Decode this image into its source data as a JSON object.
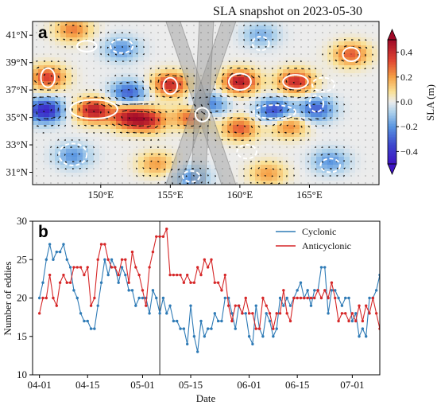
{
  "chart_data": [
    {
      "type": "heatmap",
      "panel_label": "a",
      "title": "SLA snapshot on 2023-05-30",
      "xlabel": "",
      "ylabel": "",
      "x_ticks": [
        "150°E",
        "155°E",
        "160°E",
        "165°E"
      ],
      "x_tick_values": [
        150,
        155,
        160,
        165
      ],
      "y_ticks": [
        "31°N",
        "33°N",
        "35°N",
        "37°N",
        "39°N",
        "41°N"
      ],
      "y_tick_values": [
        31,
        33,
        35,
        37,
        39,
        41
      ],
      "xlim": [
        145.1,
        170
      ],
      "ylim": [
        30.1,
        42
      ],
      "colorbar": {
        "label": "SLA (m)",
        "ticks": [
          "0.4",
          "0.2",
          "0.0",
          "−0.2",
          "−0.4"
        ],
        "tick_values": [
          0.4,
          0.2,
          0.0,
          -0.2,
          -0.4
        ],
        "range": [
          -0.5,
          0.5
        ],
        "extend": "both"
      },
      "colors": {
        "high": "#c21e2c",
        "mid": "#eaeaea",
        "low": "#3f3ed0"
      },
      "anomaly_centers": [
        {
          "lon": 146.2,
          "lat": 37.9,
          "sla": 0.35
        },
        {
          "lon": 146.0,
          "lat": 35.5,
          "sla": -0.45
        },
        {
          "lon": 149.5,
          "lat": 35.5,
          "sla": 0.45
        },
        {
          "lon": 152.0,
          "lat": 35.0,
          "sla": 0.4
        },
        {
          "lon": 153.5,
          "lat": 34.8,
          "sla": 0.35
        },
        {
          "lon": 155.0,
          "lat": 37.4,
          "sla": 0.4
        },
        {
          "lon": 156.5,
          "lat": 35.0,
          "sla": 0.3
        },
        {
          "lon": 160.0,
          "lat": 37.6,
          "sla": 0.45
        },
        {
          "lon": 164.0,
          "lat": 37.6,
          "sla": 0.4
        },
        {
          "lon": 160.0,
          "lat": 34.2,
          "sla": 0.3
        },
        {
          "lon": 163.5,
          "lat": 34.4,
          "sla": 0.25
        },
        {
          "lon": 168.0,
          "lat": 39.6,
          "sla": 0.3
        },
        {
          "lon": 157.8,
          "lat": 35.9,
          "sla": -0.25
        },
        {
          "lon": 162.5,
          "lat": 35.5,
          "sla": -0.35
        },
        {
          "lon": 165.5,
          "lat": 35.6,
          "sla": -0.3
        },
        {
          "lon": 152.0,
          "lat": 36.8,
          "sla": -0.3
        },
        {
          "lon": 148.0,
          "lat": 41.4,
          "sla": 0.25
        },
        {
          "lon": 151.5,
          "lat": 40.0,
          "sla": -0.2
        },
        {
          "lon": 154.0,
          "lat": 31.6,
          "sla": 0.2
        },
        {
          "lon": 148.0,
          "lat": 32.2,
          "sla": -0.2
        },
        {
          "lon": 156.5,
          "lat": 30.6,
          "sla": -0.2
        },
        {
          "lon": 162.0,
          "lat": 30.9,
          "sla": 0.2
        },
        {
          "lon": 166.5,
          "lat": 31.8,
          "sla": -0.2
        },
        {
          "lon": 161.5,
          "lat": 41.0,
          "sla": -0.15
        }
      ],
      "eddy_contours": [
        {
          "type": "anticyclonic",
          "lon": 149.5,
          "lat": 35.6,
          "rx": 1.7,
          "ry": 0.7
        },
        {
          "type": "anticyclonic",
          "lon": 155.0,
          "lat": 37.3,
          "rx": 0.5,
          "ry": 0.6
        },
        {
          "type": "anticyclonic",
          "lon": 160.0,
          "lat": 37.6,
          "rx": 0.8,
          "ry": 0.6
        },
        {
          "type": "anticyclonic",
          "lon": 164.0,
          "lat": 37.6,
          "rx": 0.9,
          "ry": 0.5
        },
        {
          "type": "anticyclonic",
          "lon": 168.0,
          "lat": 39.6,
          "rx": 0.6,
          "ry": 0.5
        },
        {
          "type": "anticyclonic",
          "lon": 146.2,
          "lat": 37.9,
          "rx": 0.5,
          "ry": 0.7
        },
        {
          "type": "anticyclonic",
          "lon": 149.0,
          "lat": 40.2,
          "rx": 0.7,
          "ry": 0.4
        },
        {
          "type": "anticyclonic",
          "lon": 157.3,
          "lat": 35.2,
          "rx": 0.5,
          "ry": 0.5
        },
        {
          "type": "cyclonic",
          "lon": 162.5,
          "lat": 35.4,
          "rx": 1.5,
          "ry": 0.5
        },
        {
          "type": "cyclonic",
          "lon": 165.5,
          "lat": 36.0,
          "rx": 0.5,
          "ry": 0.6
        },
        {
          "type": "cyclonic",
          "lon": 148.0,
          "lat": 32.3,
          "rx": 1.0,
          "ry": 0.8
        },
        {
          "type": "cyclonic",
          "lon": 151.5,
          "lat": 40.2,
          "rx": 0.8,
          "ry": 0.5
        },
        {
          "type": "cyclonic",
          "lon": 161.5,
          "lat": 40.4,
          "rx": 0.6,
          "ry": 0.5
        },
        {
          "type": "cyclonic",
          "lon": 166.0,
          "lat": 37.4,
          "rx": 0.8,
          "ry": 0.5
        },
        {
          "type": "cyclonic",
          "lon": 156.5,
          "lat": 30.7,
          "rx": 0.6,
          "ry": 0.4
        },
        {
          "type": "cyclonic",
          "lon": 166.5,
          "lat": 31.5,
          "rx": 0.7,
          "ry": 0.5
        },
        {
          "type": "cyclonic",
          "lon": 160.5,
          "lat": 32.5,
          "rx": 0.7,
          "ry": 0.5
        }
      ],
      "satellite_swaths": [
        {
          "lon_bottom": 155.2,
          "lon_top": 159.2
        },
        {
          "lon_bottom": 159.2,
          "lon_top": 155.2
        },
        {
          "lon_bottom": 157.0,
          "lon_top": 157.6
        }
      ]
    },
    {
      "type": "line",
      "panel_label": "b",
      "title": "",
      "xlabel": "Date",
      "ylabel": "Number of eddies",
      "ylim": [
        10,
        30
      ],
      "y_ticks": [
        10,
        15,
        20,
        25,
        30
      ],
      "x_ticks": [
        "04-01",
        "04-15",
        "05-01",
        "05-15",
        "06-01",
        "06-15",
        "07-01"
      ],
      "x_tick_values": [
        0,
        14,
        30,
        44,
        61,
        75,
        91
      ],
      "x_range": [
        -2,
        99
      ],
      "marker_day": 35,
      "legend_position": "top-right",
      "series": [
        {
          "name": "Cyclonic",
          "color": "#2f7bb6",
          "values": [
            20,
            22,
            25,
            27,
            25,
            26,
            26,
            27,
            25,
            24,
            21,
            20,
            18,
            17,
            17,
            16,
            16,
            19,
            22,
            25,
            23,
            25,
            24,
            22,
            24,
            23,
            21,
            21,
            19,
            20,
            20,
            20,
            18,
            21,
            20,
            18,
            20,
            18,
            19,
            17,
            17,
            16,
            16,
            14,
            19,
            15,
            13,
            17,
            15,
            16,
            16,
            18,
            17,
            17,
            20,
            20,
            18,
            16,
            19,
            18,
            18,
            15,
            14,
            19,
            16,
            15,
            18,
            17,
            15,
            16,
            20,
            19,
            20,
            19,
            20,
            21,
            22,
            20,
            21,
            19,
            21,
            21,
            24,
            24,
            18,
            21,
            21,
            20,
            19,
            20,
            20,
            17,
            18,
            15,
            16,
            15,
            20,
            20,
            21,
            23
          ]
        },
        {
          "name": "Anticyclonic",
          "color": "#d62728",
          "values": [
            18,
            20,
            20,
            23,
            20,
            19,
            22,
            23,
            22,
            22,
            24,
            24,
            24,
            23,
            24,
            19,
            20,
            25,
            27,
            27,
            25,
            24,
            24,
            23,
            25,
            25,
            22,
            26,
            24,
            23,
            21,
            19,
            24,
            26,
            28,
            28,
            28,
            29,
            23,
            23,
            23,
            23,
            22,
            23,
            22,
            22,
            24,
            23,
            25,
            24,
            25,
            22,
            22,
            21,
            23,
            19,
            17,
            19,
            19,
            18,
            20,
            18,
            18,
            16,
            16,
            20,
            19,
            18,
            16,
            18,
            18,
            21,
            18,
            17,
            20,
            20,
            20,
            20,
            20,
            20,
            20,
            21,
            20,
            21,
            20,
            22,
            20,
            17,
            18,
            18,
            17,
            18,
            17,
            19,
            17,
            19,
            18,
            20,
            18,
            16
          ]
        }
      ]
    }
  ]
}
